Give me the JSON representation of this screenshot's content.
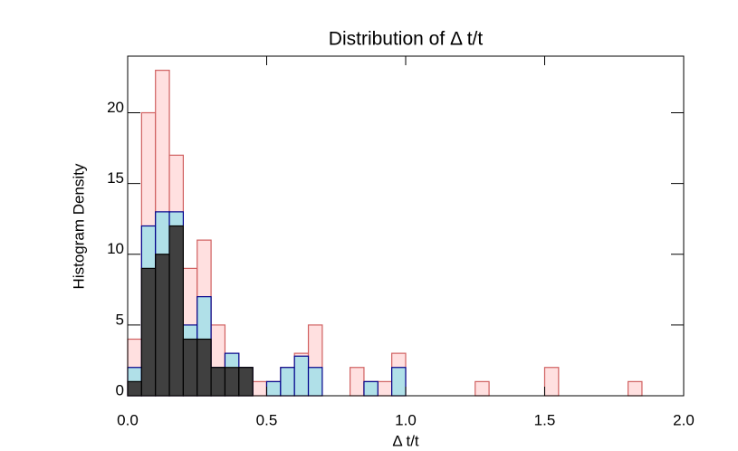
{
  "chart_data": {
    "type": "histogram",
    "title": "Distribution of Δ t/t",
    "x_label": "Δ t/t",
    "y_label": "Histogram Density",
    "bins": [
      0,
      0.05,
      0.1,
      0.15,
      0.2,
      0.25,
      0.3,
      0.35,
      0.4,
      0.45,
      0.5,
      0.55,
      0.6,
      0.65,
      0.7,
      0.75,
      0.8,
      0.85,
      0.9,
      0.95,
      1.0,
      1.05,
      1.1,
      1.15,
      1.2,
      1.25,
      1.3,
      1.35,
      1.4,
      1.45,
      1.5,
      1.55,
      1.6,
      1.65,
      1.7,
      1.75,
      1.8,
      1.85,
      1.9,
      1.95,
      2.0
    ],
    "series": [
      {
        "color": "#ffe0e0",
        "edge_color": "#d06060",
        "values": [
          4,
          20,
          23,
          17,
          9,
          11,
          5,
          3,
          2,
          1,
          1,
          2,
          3,
          5,
          0,
          0,
          2,
          1,
          1,
          3,
          0,
          0,
          0,
          0,
          0,
          1,
          0,
          0,
          0,
          0,
          2,
          0,
          0,
          0,
          0,
          0,
          1,
          0,
          0,
          0
        ]
      },
      {
        "color": "#b0e0e8",
        "edge_color": "#00008b",
        "values": [
          2,
          12,
          13,
          13,
          5,
          7,
          2,
          3,
          2,
          0,
          1,
          2,
          2.8,
          2,
          0,
          0,
          0,
          1,
          0,
          2,
          0,
          0,
          0,
          0,
          0,
          0,
          0,
          0,
          0,
          0,
          0,
          0,
          0,
          0,
          0,
          0,
          0,
          0,
          0,
          0
        ]
      },
      {
        "color": "#404040",
        "edge_color": "#000000",
        "values": [
          1,
          9,
          10,
          12,
          4,
          4,
          2,
          2,
          2,
          0,
          0,
          0,
          0,
          0,
          0,
          0,
          0,
          0,
          0,
          0,
          0,
          0,
          0,
          0,
          0,
          0,
          0,
          0,
          0,
          0,
          0,
          0,
          0,
          0,
          0,
          0,
          0,
          0,
          0,
          0
        ]
      }
    ],
    "xlim": [
      0,
      2.0
    ],
    "ylim": [
      0,
      24
    ],
    "xticks": [
      {
        "value": 0,
        "label": "0.0"
      },
      0.5,
      {
        "value": 1.0,
        "label": "1.0"
      },
      1.5,
      {
        "value": 2.0,
        "label": "2.0"
      }
    ],
    "yticks": [
      0,
      5,
      10,
      15,
      20
    ]
  }
}
